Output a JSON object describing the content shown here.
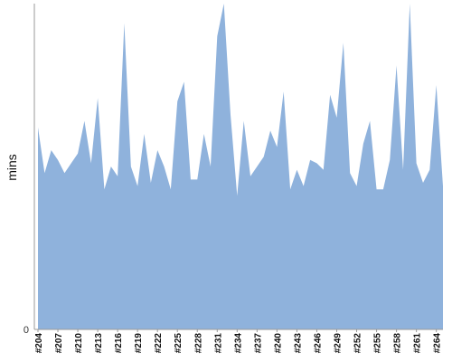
{
  "chart_data": {
    "type": "area",
    "title": "",
    "xlabel": "",
    "ylabel": "mins",
    "ylim": [
      0,
      100
    ],
    "yticks": [
      0
    ],
    "grid": false,
    "legend": "none",
    "fill_color": "#8fb2dc",
    "axis_color": "#999999",
    "x": [
      "#204",
      "#205",
      "#206",
      "#207",
      "#208",
      "#209",
      "#210",
      "#211",
      "#212",
      "#213",
      "#214",
      "#215",
      "#216",
      "#217",
      "#218",
      "#219",
      "#220",
      "#221",
      "#222",
      "#223",
      "#224",
      "#225",
      "#226",
      "#227",
      "#228",
      "#229",
      "#230",
      "#231",
      "#232",
      "#233",
      "#234",
      "#235",
      "#236",
      "#237",
      "#238",
      "#239",
      "#240",
      "#241",
      "#242",
      "#243",
      "#244",
      "#245",
      "#246",
      "#247",
      "#248",
      "#249",
      "#250",
      "#251",
      "#252",
      "#253",
      "#254",
      "#255",
      "#256",
      "#257",
      "#258",
      "#259",
      "#260",
      "#261",
      "#262",
      "#263",
      "#264",
      "#265"
    ],
    "x_tick_labels": [
      "#204",
      "#207",
      "#210",
      "#213",
      "#216",
      "#219",
      "#222",
      "#225",
      "#228",
      "#231",
      "#234",
      "#237",
      "#240",
      "#243",
      "#246",
      "#249",
      "#252",
      "#255",
      "#258",
      "#261",
      "#264"
    ],
    "values": [
      62,
      48,
      55,
      52,
      48,
      51,
      54,
      64,
      51,
      71,
      43,
      50,
      47,
      94,
      50,
      44,
      60,
      45,
      55,
      50,
      43,
      70,
      76,
      46,
      46,
      60,
      50,
      90,
      100,
      66,
      41,
      64,
      47,
      50,
      53,
      61,
      56,
      73,
      43,
      49,
      44,
      52,
      51,
      49,
      72,
      65,
      88,
      48,
      44,
      57,
      64,
      43,
      43,
      52,
      81,
      49,
      100,
      51,
      45,
      49,
      75,
      44
    ]
  }
}
